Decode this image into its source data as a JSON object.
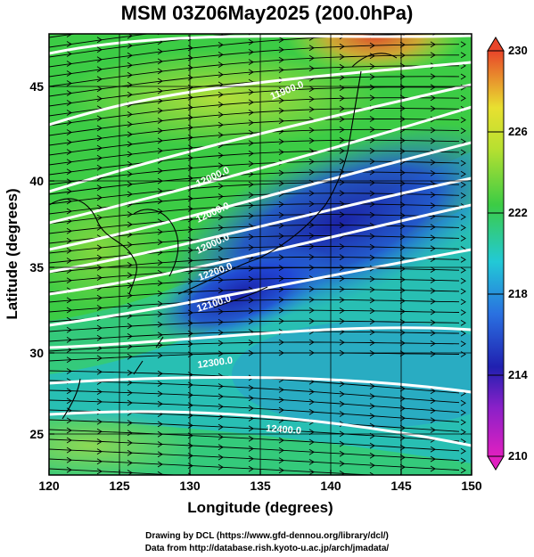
{
  "title": "MSM 03Z06May2025 (200.0hPa)",
  "xlabel": "Longitude (degrees)",
  "ylabel": "Latitude  (degrees)",
  "x_ticks": [
    "120",
    "125",
    "130",
    "135",
    "140",
    "145",
    "150"
  ],
  "y_ticks": [
    "25",
    "30",
    "35",
    "40",
    "45"
  ],
  "colorbar_ticks": [
    "230",
    "226",
    "222",
    "218",
    "214",
    "210"
  ],
  "contour_labels": [
    "11900.0",
    "12000.0",
    "12000.0",
    "12000.0",
    "12100.0",
    "12200.0",
    "12300.0",
    "12400.0"
  ],
  "credits": {
    "line1": "Drawing by DCL (https://www.gfd-dennou.org/library/dcl/)",
    "line2": "Data from http://database.rish.kyoto-u.ac.jp/arch/jmadata/"
  },
  "colors": {
    "warm": "#e8452a",
    "yellow": "#d8e634",
    "green": "#3ccc45",
    "cyan": "#22c9d6",
    "blue": "#2046d8",
    "deep_blue": "#1a1aa8",
    "magenta": "#e020c0"
  }
}
